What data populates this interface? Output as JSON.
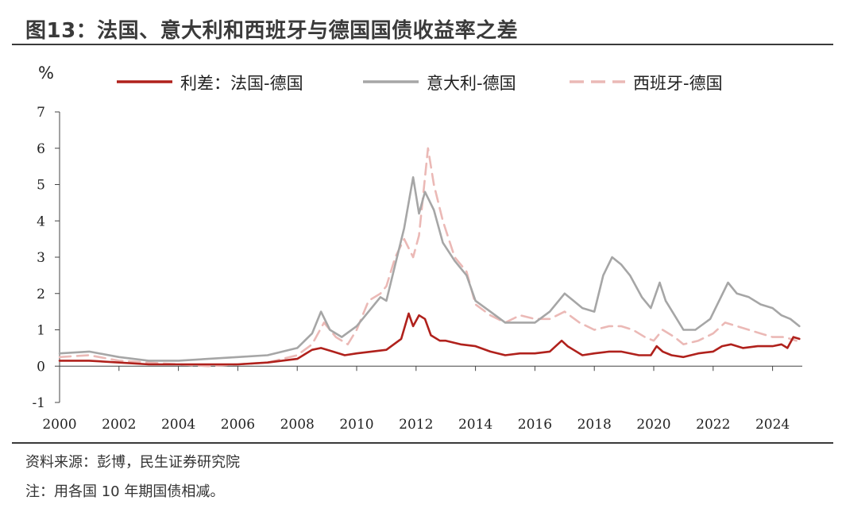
{
  "title": "图13：法国、意大利和西班牙与德国国债收益率之差",
  "source": "资料来源：彭博，民生证券研究院",
  "note": "注：用各国 10 年期国债相减。",
  "chart_data": {
    "type": "line",
    "title": "图13：法国、意大利和西班牙与德国国债收益率之差",
    "ylabel": "%",
    "xlabel": "",
    "xlim": [
      2000,
      2025
    ],
    "ylim": [
      -1,
      7
    ],
    "x_ticks": [
      "2000",
      "2002",
      "2004",
      "2006",
      "2008",
      "2010",
      "2012",
      "2014",
      "2016",
      "2018",
      "2020",
      "2022",
      "2024"
    ],
    "y_ticks": [
      "-1",
      "0",
      "1",
      "2",
      "3",
      "4",
      "5",
      "6",
      "7"
    ],
    "legend_position": "top",
    "series": [
      {
        "name": "利差：法国-德国",
        "color": "#b0211c",
        "style": "solid",
        "x": [
          2000,
          2001,
          2002,
          2003,
          2004,
          2005,
          2006,
          2007,
          2008,
          2008.5,
          2008.8,
          2009.2,
          2009.6,
          2010,
          2010.5,
          2011,
          2011.5,
          2011.75,
          2011.9,
          2012.1,
          2012.3,
          2012.5,
          2012.8,
          2013,
          2013.5,
          2014,
          2014.5,
          2015,
          2015.5,
          2016,
          2016.5,
          2016.9,
          2017.1,
          2017.3,
          2017.6,
          2018,
          2018.5,
          2018.9,
          2019.5,
          2019.9,
          2020.1,
          2020.3,
          2020.6,
          2021,
          2021.5,
          2022,
          2022.3,
          2022.6,
          2023,
          2023.5,
          2024,
          2024.3,
          2024.5,
          2024.7,
          2024.9
        ],
        "values": [
          0.15,
          0.15,
          0.1,
          0.05,
          0.05,
          0.05,
          0.05,
          0.1,
          0.2,
          0.45,
          0.5,
          0.4,
          0.3,
          0.35,
          0.4,
          0.45,
          0.75,
          1.45,
          1.1,
          1.4,
          1.3,
          0.85,
          0.7,
          0.7,
          0.6,
          0.55,
          0.4,
          0.3,
          0.35,
          0.35,
          0.4,
          0.7,
          0.55,
          0.45,
          0.3,
          0.35,
          0.4,
          0.4,
          0.3,
          0.3,
          0.55,
          0.4,
          0.3,
          0.25,
          0.35,
          0.4,
          0.55,
          0.6,
          0.5,
          0.55,
          0.55,
          0.6,
          0.5,
          0.8,
          0.75
        ]
      },
      {
        "name": "意大利-德国",
        "color": "#a6a6a6",
        "style": "solid",
        "x": [
          2000,
          2001,
          2002,
          2003,
          2004,
          2005,
          2006,
          2007,
          2008,
          2008.5,
          2008.8,
          2009.1,
          2009.5,
          2010,
          2010.4,
          2010.8,
          2011,
          2011.3,
          2011.6,
          2011.9,
          2012.1,
          2012.3,
          2012.6,
          2012.9,
          2013.3,
          2013.7,
          2014,
          2014.5,
          2015,
          2015.5,
          2016,
          2016.5,
          2017,
          2017.3,
          2017.6,
          2018,
          2018.3,
          2018.6,
          2018.9,
          2019.2,
          2019.6,
          2019.9,
          2020.2,
          2020.4,
          2020.7,
          2021,
          2021.4,
          2021.9,
          2022.2,
          2022.5,
          2022.8,
          2023.2,
          2023.6,
          2024,
          2024.3,
          2024.6,
          2024.9
        ],
        "values": [
          0.35,
          0.4,
          0.25,
          0.15,
          0.15,
          0.2,
          0.25,
          0.3,
          0.5,
          0.9,
          1.5,
          1.0,
          0.8,
          1.1,
          1.5,
          1.9,
          1.8,
          2.8,
          3.8,
          5.2,
          4.2,
          4.8,
          4.3,
          3.4,
          2.9,
          2.5,
          1.8,
          1.5,
          1.2,
          1.2,
          1.2,
          1.5,
          2.0,
          1.8,
          1.6,
          1.5,
          2.5,
          3.0,
          2.8,
          2.5,
          1.9,
          1.6,
          2.3,
          1.8,
          1.4,
          1.0,
          1.0,
          1.3,
          1.8,
          2.3,
          2.0,
          1.9,
          1.7,
          1.6,
          1.4,
          1.3,
          1.1
        ]
      },
      {
        "name": "西班牙-德国",
        "color": "#ebb9b6",
        "style": "dashed",
        "x": [
          2000,
          2001,
          2002,
          2003,
          2004,
          2005,
          2006,
          2007,
          2008,
          2008.5,
          2008.9,
          2009.3,
          2009.7,
          2010,
          2010.4,
          2010.8,
          2011,
          2011.3,
          2011.6,
          2011.9,
          2012.1,
          2012.4,
          2012.6,
          2012.9,
          2013.3,
          2013.7,
          2014,
          2014.5,
          2015,
          2015.5,
          2016,
          2016.5,
          2017,
          2017.5,
          2018,
          2018.5,
          2018.9,
          2019.3,
          2019.7,
          2020,
          2020.3,
          2020.7,
          2021,
          2021.5,
          2022,
          2022.4,
          2022.8,
          2023.2,
          2023.6,
          2024,
          2024.4,
          2024.8
        ],
        "values": [
          0.25,
          0.3,
          0.15,
          0.1,
          0.05,
          0.0,
          0.05,
          0.1,
          0.3,
          0.6,
          1.2,
          0.8,
          0.6,
          1.0,
          1.8,
          2.0,
          2.2,
          3.0,
          3.5,
          3.0,
          3.6,
          6.0,
          5.0,
          4.0,
          3.0,
          2.6,
          1.7,
          1.4,
          1.2,
          1.4,
          1.3,
          1.3,
          1.5,
          1.2,
          1.0,
          1.1,
          1.1,
          1.0,
          0.8,
          0.7,
          1.0,
          0.8,
          0.6,
          0.7,
          0.9,
          1.2,
          1.1,
          1.0,
          0.9,
          0.8,
          0.8,
          0.7
        ]
      }
    ]
  }
}
